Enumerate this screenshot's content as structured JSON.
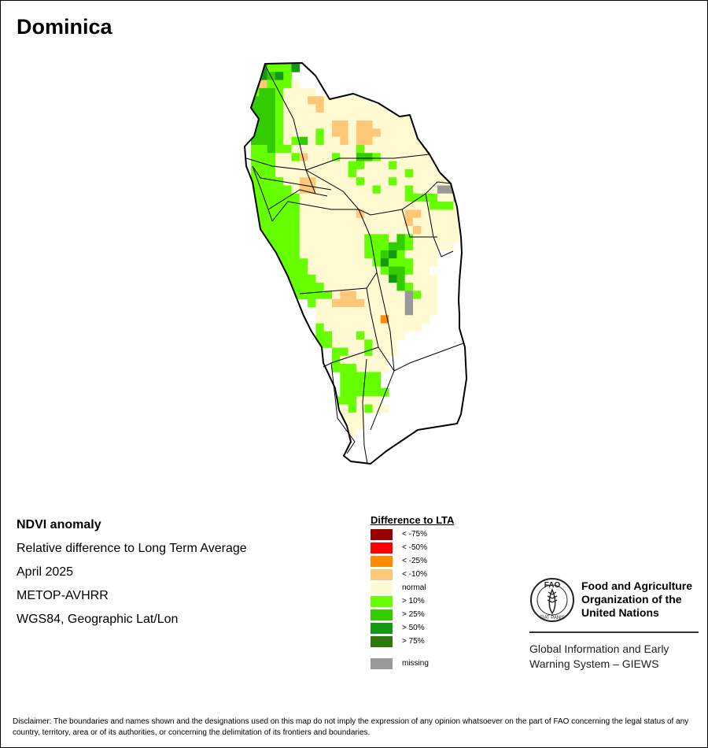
{
  "title": "Dominica",
  "info": {
    "product": "NDVI anomaly",
    "measure": "Relative difference to Long Term Average",
    "period": "April 2025",
    "sensor": "METOP-AVHRR",
    "projection": "WGS84, Geographic Lat/Lon"
  },
  "legend": {
    "title": "Difference to LTA",
    "items": [
      {
        "label": "< -75%",
        "color": "#990000"
      },
      {
        "label": "< -50%",
        "color": "#ff0000"
      },
      {
        "label": "< -25%",
        "color": "#ff8c00"
      },
      {
        "label": "< -10%",
        "color": "#ffc878"
      },
      {
        "label": "normal",
        "color": "#fffad2"
      },
      {
        "label": "> 10%",
        "color": "#66ff00"
      },
      {
        "label": "> 25%",
        "color": "#33cc00"
      },
      {
        "label": "> 50%",
        "color": "#129a12"
      },
      {
        "label": "> 75%",
        "color": "#2b7a0b"
      },
      {
        "label": "missing",
        "color": "#999999"
      }
    ]
  },
  "organization": {
    "name_lines": [
      "Food and Agriculture",
      "Organization of the",
      "United Nations"
    ],
    "logo_letters": "FAO",
    "logo_motto": "FIAT PANIS",
    "program_lines": [
      "Global Information and Early",
      "Warning System – GIEWS"
    ]
  },
  "disclaimer": "Disclaimer: The boundaries and names shown and the designations used on this map do not imply the expression of any opinion whatsoever on the part of FAO concerning the legal status of any country, territory, area or of its authorities, or concerning the delimitation of its frontiers and boundaries.",
  "anomaly_grid": {
    "columns": 27,
    "classes": {
      "N": "normal",
      "a": "< -10%",
      "o": "< -25%",
      "g": "> 10%",
      "G": "> 25%",
      "D": "> 50%",
      "M": "missing"
    },
    "rows": [
      "gDgggD.....................",
      "gDGDg......................",
      "GagggN.....................",
      "gGGgNNNN...................",
      "GGGgNNNaaNNNNNN............",
      "GGGgNNNNaNNNNNNNN..........",
      "GGGgNNNNNNNNNNNNNNNN.......",
      "GGGgNNNNNNaaNaaNNNNNN......",
      "GGGgNNNNgNaaNaaaNNNNNN.....",
      "GGGgNgGNgNNaNaaNNNNNNNNN...",
      "ggGggNNNNNNNNgNNNNNNNNNNNNa",
      "gggNNgaNNNgNNGGgNNNNNNNNNNo",
      "gggNNNNNNNNNggNNNgNNNNNNNNN",
      "gggNNNNNNNNNgNNNNNNgNNNNNNN",
      "ggggNNaaNNNNNgNNNgNNNNNNNNN",
      "gggggNaaNNNNNNNgNNNgNNNMMMN",
      "ggggggNNNNNNNNNNNNNggggNNMN",
      "ggggggNNNNNNNNNNNNNNNNgggNN",
      "ggggggNNNNNNNaNNNNNaaNNNNN.",
      "ggggggNNNNNNNNNNNNNaNNNNNN.",
      "ggggggNNNNNNNNNNNNNNaNNNNN.",
      "ggggggNNNNNNNNgggNGgNNNNNN.",
      "ggggggNNNNNNNNgggGGgNNNNN..",
      "ggggggNNNNNNNNggGDgNNNN....",
      "gggggggNNNNNNNNgDgggNNN....",
      ".ggggggNNNNNNNNNgGGgNN.....",
      ".gggggggNNNNNNNNNDGNNNN....",
      "....gggggNNNNNNNNNGgNNN....",
      ".....gggggNaaNNNNNNMgNN....",
      ".......gNNaaaaNNNNNMNNN....",
      "........NNNNNNNNNNNMNNN....",
      "........NNNNNNNNoNNNNN.....",
      "........gNNNNNNNNNNNN......",
      "........ggNNNgNNNNN........",
      "........ggNNNNgNNN.........",
      "..........ggNNgNNN.........",
      "..........gNNNNNN..........",
      "..........gggNNNN..........",
      "...........ggggg...........",
      "...........ggggg...........",
      "...........gggggg..........",
      "..........gggNNN...........",
      "...........NgNgNN..........",
      "...........NNN.............",
      "...........NNN.............",
      "...........NN.............."
    ]
  }
}
